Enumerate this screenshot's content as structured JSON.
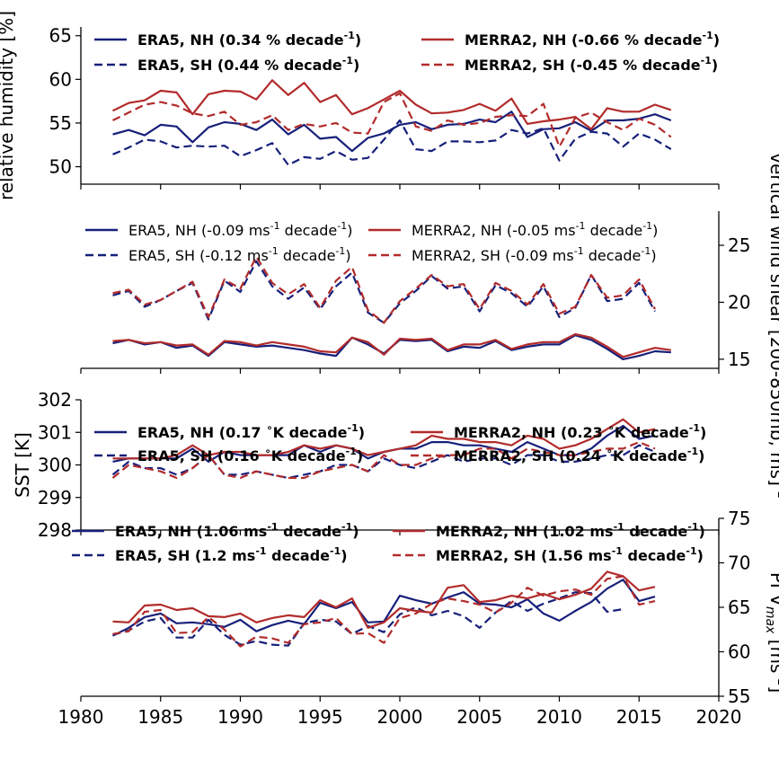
{
  "chart_data": [
    {
      "type": "line",
      "ylabel": "relative humidity [%]",
      "ylabel_side": "left",
      "xlim": [
        1980,
        2020
      ],
      "ylim": [
        48,
        66
      ],
      "yticks": [
        50,
        55,
        60,
        65
      ],
      "legend_bold": true,
      "legend_placement": "top",
      "series": [
        {
          "name": "ERA5, NH (0.34 % decade",
          "name_sup": "-1",
          "name_end": ")",
          "color": "#17207a",
          "dash": "solid",
          "values": [
            53.7,
            54.2,
            53.6,
            54.8,
            54.6,
            52.8,
            54.5,
            55.1,
            54.9,
            54.2,
            55.4,
            53.7,
            54.8,
            53.2,
            53.4,
            51.8,
            53.3,
            53.8,
            54.8,
            55.1,
            54.3,
            54.8,
            54.9,
            55.4,
            55.1,
            56.3,
            53.4,
            54.3,
            54.4,
            55.1,
            54.1,
            55.3,
            55.3,
            55.5,
            56.0,
            55.3
          ]
        },
        {
          "name": "ERA5, SH (0.44 % decade",
          "name_sup": "-1",
          "name_end": ")",
          "color": "#17207a",
          "dash": "dashed",
          "values": [
            51.4,
            52.2,
            53.1,
            52.9,
            52.2,
            52.4,
            52.3,
            52.4,
            51.2,
            51.9,
            52.7,
            50.2,
            51.1,
            50.9,
            51.8,
            50.8,
            51.0,
            53.1,
            55.3,
            52.0,
            51.8,
            52.9,
            52.9,
            52.8,
            53.0,
            54.2,
            53.8,
            54.4,
            50.7,
            53.2,
            54.0,
            53.8,
            52.3,
            53.8,
            53.1,
            52.0
          ]
        },
        {
          "name": "MERRA2, NH (-0.66 % decade",
          "name_sup": "-1",
          "name_end": ")",
          "color": "#b22b2b",
          "dash": "solid",
          "values": [
            56.4,
            57.3,
            57.6,
            58.7,
            58.5,
            56.0,
            58.3,
            58.7,
            58.6,
            57.7,
            59.9,
            58.2,
            59.6,
            57.4,
            58.2,
            56.0,
            56.7,
            57.7,
            58.7,
            57.1,
            56.1,
            56.2,
            56.5,
            57.2,
            56.4,
            57.8,
            54.9,
            55.2,
            55.4,
            55.7,
            54.3,
            56.7,
            56.3,
            56.3,
            57.1,
            56.5
          ]
        },
        {
          "name": "MERRA2, SH (-0.45 % decade",
          "name_sup": "-1",
          "name_end": ")",
          "color": "#b22b2b",
          "dash": "dashed",
          "values": [
            55.3,
            56.2,
            57.1,
            57.4,
            57.0,
            56.1,
            55.8,
            56.3,
            54.8,
            55.1,
            55.9,
            54.2,
            54.9,
            54.6,
            55.0,
            53.9,
            53.8,
            57.4,
            58.4,
            54.6,
            54.1,
            55.3,
            54.8,
            55.0,
            55.7,
            55.9,
            55.8,
            57.2,
            52.3,
            55.6,
            56.2,
            55.1,
            54.2,
            55.5,
            54.8,
            53.4
          ]
        }
      ]
    },
    {
      "type": "line",
      "ylabel": "vertical wind shear [200-850mb, ms",
      "ylabel_sup": "-1",
      "ylabel_end": "]",
      "ylabel_side": "right",
      "xlim": [
        1980,
        2020
      ],
      "ylim": [
        14.2,
        28
      ],
      "yticks": [
        15,
        20,
        25
      ],
      "legend_bold": false,
      "legend_placement": "top",
      "series": [
        {
          "name": "ERA5, NH (-0.09 ms",
          "name_sup": "-1",
          "name_end": " decade",
          "name_sup2": "-1",
          "name_end2": ")",
          "color": "#17207a",
          "dash": "solid",
          "values": [
            16.4,
            16.7,
            16.3,
            16.5,
            16.0,
            16.2,
            15.3,
            16.5,
            16.3,
            16.1,
            16.2,
            16.0,
            15.8,
            15.5,
            15.3,
            16.9,
            16.3,
            15.5,
            16.7,
            16.6,
            16.7,
            15.7,
            16.1,
            16.0,
            16.6,
            15.8,
            16.1,
            16.3,
            16.3,
            17.1,
            16.7,
            15.9,
            15.0,
            15.3,
            15.7,
            15.6
          ]
        },
        {
          "name": "ERA5, SH (-0.12 ms",
          "name_sup": "-1",
          "name_end": " decade",
          "name_sup2": "-1",
          "name_end2": ")",
          "color": "#17207a",
          "dash": "dashed",
          "values": [
            20.6,
            21.0,
            19.6,
            20.2,
            21.0,
            21.7,
            18.5,
            21.9,
            20.9,
            23.6,
            21.4,
            20.3,
            21.3,
            19.4,
            21.4,
            22.6,
            19.1,
            18.2,
            19.9,
            21.0,
            22.3,
            21.2,
            21.4,
            19.2,
            21.5,
            20.8,
            19.6,
            21.4,
            18.7,
            19.5,
            22.4,
            20.1,
            20.3,
            21.7,
            19.2
          ]
        },
        {
          "name": "MERRA2, NH (-0.05 ms",
          "name_sup": "-1",
          "name_end": " decade",
          "name_sup2": "-1",
          "name_end2": ")",
          "color": "#b22b2b",
          "dash": "solid",
          "values": [
            16.6,
            16.7,
            16.4,
            16.5,
            16.2,
            16.3,
            15.4,
            16.6,
            16.5,
            16.2,
            16.5,
            16.3,
            16.1,
            15.7,
            15.6,
            16.9,
            16.5,
            15.4,
            16.8,
            16.7,
            16.8,
            15.8,
            16.3,
            16.3,
            16.7,
            15.9,
            16.3,
            16.5,
            16.5,
            17.2,
            16.9,
            16.1,
            15.2,
            15.6,
            16.0,
            15.8
          ]
        },
        {
          "name": "MERRA2, SH (-0.09 ms",
          "name_sup": "-1",
          "name_end": " decade",
          "name_sup2": "-1",
          "name_end2": ")",
          "color": "#b22b2b",
          "dash": "dashed",
          "values": [
            20.8,
            21.1,
            19.8,
            20.2,
            21.0,
            21.8,
            18.7,
            22.0,
            21.2,
            24.0,
            21.7,
            20.7,
            21.6,
            19.5,
            21.9,
            23.1,
            19.3,
            18.2,
            20.1,
            21.2,
            22.4,
            21.4,
            21.6,
            19.4,
            21.7,
            21.0,
            19.8,
            21.6,
            19.0,
            19.6,
            22.4,
            20.4,
            20.6,
            22.0,
            19.4
          ]
        }
      ]
    },
    {
      "type": "line",
      "ylabel": "SST [K]",
      "ylabel_side": "left",
      "xlim": [
        1980,
        2020
      ],
      "ylim": [
        298,
        302
      ],
      "yticks": [
        298,
        299,
        300,
        301,
        302
      ],
      "legend_bold": true,
      "legend_placement": "bottom",
      "series": [
        {
          "name": "ERA5, NH (0.17 ",
          "name_deg": "∘",
          "name_end": "K decade",
          "name_sup2": "-1",
          "name_end2": ")",
          "color": "#17207a",
          "dash": "solid",
          "values": [
            300.1,
            300.2,
            300.2,
            300.2,
            300.2,
            300.5,
            300.1,
            300.4,
            300.3,
            300.3,
            300.3,
            300.3,
            300.6,
            300.4,
            300.6,
            300.5,
            300.2,
            300.4,
            300.5,
            300.5,
            300.7,
            300.7,
            300.6,
            300.6,
            300.5,
            300.4,
            300.7,
            300.5,
            300.3,
            300.3,
            300.5,
            300.9,
            301.2,
            300.8,
            300.9
          ]
        },
        {
          "name": "ERA5, SH (0.16 ",
          "name_deg": "∘",
          "name_end": "K decade",
          "name_sup2": "-1",
          "name_end2": ")",
          "color": "#17207a",
          "dash": "dashed",
          "values": [
            299.7,
            300.1,
            299.9,
            299.9,
            299.7,
            299.9,
            300.3,
            299.7,
            299.7,
            299.8,
            299.7,
            299.6,
            299.7,
            299.8,
            300.0,
            300.0,
            299.8,
            300.2,
            300.0,
            299.9,
            300.1,
            300.3,
            300.1,
            300.2,
            300.2,
            300.0,
            300.3,
            300.3,
            300.1,
            300.1,
            300.2,
            300.3,
            300.3,
            300.6,
            300.4
          ]
        },
        {
          "name": "MERRA2, NH (0.23 ",
          "name_deg": "∘",
          "name_end": "K decade",
          "name_sup2": "-1",
          "name_end2": ")",
          "color": "#b22b2b",
          "dash": "solid",
          "values": [
            300.2,
            300.2,
            300.2,
            300.2,
            300.3,
            300.6,
            300.3,
            300.4,
            300.4,
            300.3,
            300.3,
            300.4,
            300.6,
            300.5,
            300.6,
            300.5,
            300.3,
            300.4,
            300.5,
            300.6,
            300.9,
            300.8,
            300.8,
            300.7,
            300.7,
            300.6,
            300.9,
            300.8,
            300.5,
            300.6,
            300.8,
            301.1,
            301.4,
            301.0,
            301.1
          ]
        },
        {
          "name": "MERRA2, SH (0.24 ",
          "name_deg": "∘",
          "name_end": "K decade",
          "name_sup2": "-1",
          "name_end2": ")",
          "color": "#b22b2b",
          "dash": "dashed",
          "values": [
            299.6,
            300.0,
            299.9,
            299.8,
            299.6,
            299.9,
            300.3,
            299.7,
            299.6,
            299.8,
            299.7,
            299.6,
            299.6,
            299.8,
            299.9,
            300.0,
            299.8,
            300.3,
            300.0,
            300.0,
            300.2,
            300.3,
            300.3,
            300.5,
            300.5,
            300.2,
            300.5,
            300.4,
            300.3,
            300.3,
            300.4,
            300.5,
            300.5,
            300.7,
            300.5
          ]
        }
      ]
    },
    {
      "type": "line",
      "ylabel": "PI V",
      "ylabel_sub": "max",
      "ylabel_end": " [ms",
      "ylabel_sup": "-1",
      "ylabel_end2": "]",
      "ylabel_side": "right",
      "xlim": [
        1980,
        2020
      ],
      "ylim": [
        55,
        75
      ],
      "yticks": [
        55,
        60,
        65,
        70,
        75
      ],
      "xticks": [
        1980,
        1985,
        1990,
        1995,
        2000,
        2005,
        2010,
        2015,
        2020
      ],
      "legend_bold": true,
      "legend_placement": "top",
      "series": [
        {
          "name": "ERA5, NH (1.06 ms",
          "name_sup": "-1",
          "name_end": " decade",
          "name_sup2": "-1",
          "name_end2": ")",
          "color": "#17207a",
          "dash": "solid",
          "values": [
            61.8,
            62.7,
            63.9,
            64.3,
            63.2,
            63.3,
            63.1,
            62.8,
            63.6,
            62.3,
            63.0,
            63.5,
            63.1,
            65.5,
            64.9,
            65.6,
            63.3,
            63.4,
            66.3,
            65.8,
            65.4,
            66.1,
            66.7,
            65.4,
            65.3,
            65.0,
            65.9,
            64.3,
            63.5,
            64.6,
            65.6,
            67.1,
            68.1,
            65.7,
            66.2
          ]
        },
        {
          "name": "ERA5, SH (1.2 ms",
          "name_sup": "-1",
          "name_end": " decade",
          "name_sup2": "-1",
          "name_end2": ")",
          "color": "#17207a",
          "dash": "dashed",
          "values": [
            61.9,
            62.4,
            63.4,
            63.8,
            61.6,
            61.6,
            63.6,
            61.9,
            60.8,
            61.2,
            60.8,
            60.7,
            63.2,
            63.6,
            63.4,
            62.0,
            62.9,
            62.2,
            64.2,
            65.0,
            64.1,
            64.6,
            64.0,
            62.7,
            64.4,
            65.7,
            64.6,
            65.4,
            66.0,
            66.7,
            66.6,
            64.5,
            64.8
          ]
        },
        {
          "name": "MERRA2, NH (1.02 ms",
          "name_sup": "-1",
          "name_end": " decade",
          "name_sup2": "-1",
          "name_end2": ")",
          "color": "#b22b2b",
          "dash": "solid",
          "values": [
            63.4,
            63.3,
            65.2,
            65.3,
            64.7,
            64.9,
            64.0,
            63.9,
            64.3,
            63.3,
            63.8,
            64.1,
            63.9,
            65.8,
            65.0,
            66.0,
            62.7,
            63.3,
            64.9,
            64.6,
            64.4,
            67.2,
            67.5,
            65.6,
            65.8,
            66.3,
            66.0,
            66.5,
            65.9,
            66.4,
            67.1,
            69.0,
            68.5,
            66.9,
            67.3
          ]
        },
        {
          "name": "MERRA2, SH (1.56 ms",
          "name_sup": "-1",
          "name_end": " decade",
          "name_sup2": "-1",
          "name_end2": ")",
          "color": "#b22b2b",
          "dash": "dashed",
          "values": [
            62.0,
            62.3,
            64.5,
            64.7,
            62.1,
            62.2,
            63.9,
            62.5,
            60.6,
            61.7,
            61.5,
            61.0,
            63.1,
            63.3,
            63.8,
            62.0,
            62.1,
            61.0,
            63.8,
            64.3,
            65.4,
            66.0,
            65.7,
            65.3,
            64.4,
            65.5,
            67.2,
            66.3,
            66.8,
            67.0,
            66.4,
            68.2,
            68.5,
            65.3,
            65.7
          ]
        }
      ]
    }
  ]
}
